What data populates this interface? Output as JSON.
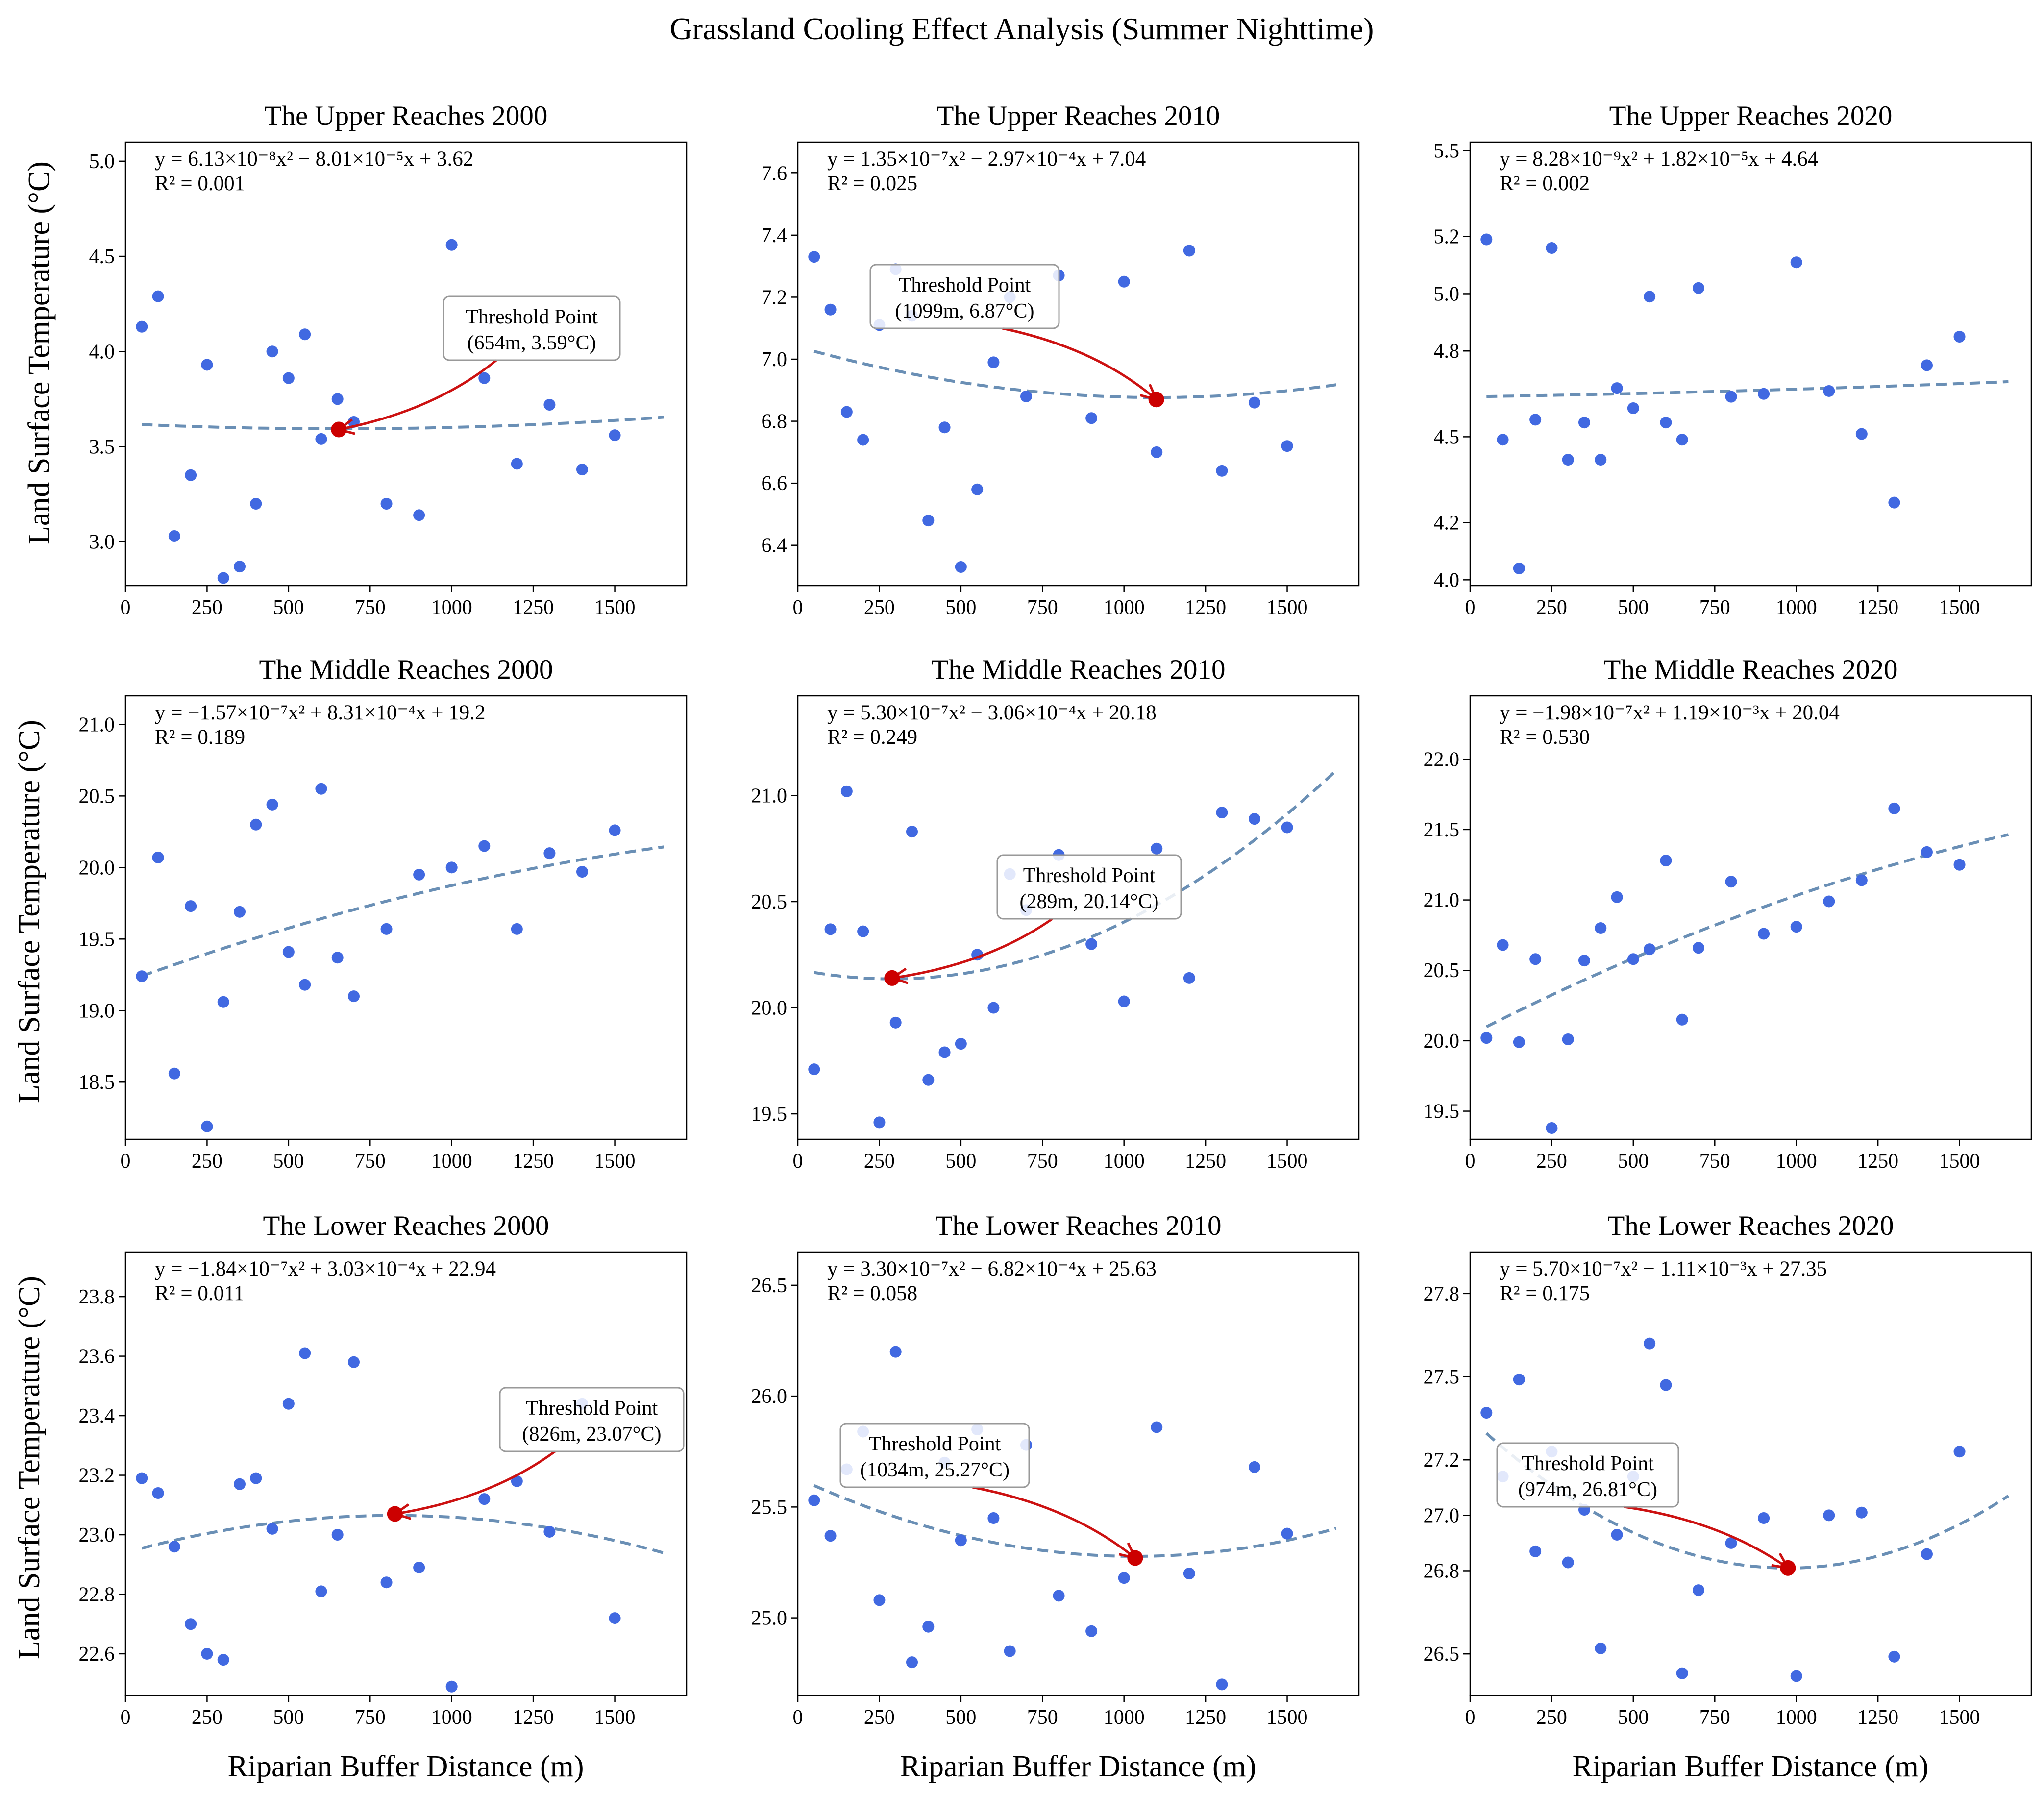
{
  "figure": {
    "title": "Grassland Cooling Effect Analysis (Summer Nighttime)",
    "xlabel": "Riparian Buffer Distance (m)",
    "ylabel": "Land Surface Temperature (°C)",
    "annotation_label": "Threshold Point"
  },
  "colors": {
    "points": "#4169e1",
    "fit": "#6a8fb5",
    "threshold": "#cc0000",
    "arrow": "#cc1111",
    "box_edge": "#999999"
  },
  "chart_data": [
    {
      "type": "scatter",
      "title": "The Upper Reaches 2000",
      "equation": "y = 6.13×10⁻⁸x² − 8.01×10⁻⁵x + 3.62",
      "r2": "R² = 0.001",
      "xlim": [
        0,
        1720
      ],
      "ylim": [
        2.77,
        5.1
      ],
      "xticks": [
        0,
        250,
        500,
        750,
        1000,
        1250,
        1500
      ],
      "xtick_labels": [
        "0",
        "250",
        "500",
        "750",
        "1000",
        "1250",
        "1500"
      ],
      "yticks": [
        3.0,
        3.5,
        4.0,
        4.5,
        5.0
      ],
      "ytick_labels": [
        "3.0",
        "3.5",
        "4.0",
        "4.5",
        "5.0"
      ],
      "points": [
        [
          50,
          4.13
        ],
        [
          100,
          4.29
        ],
        [
          150,
          3.03
        ],
        [
          200,
          3.35
        ],
        [
          250,
          3.93
        ],
        [
          300,
          2.81
        ],
        [
          350,
          2.87
        ],
        [
          400,
          3.2
        ],
        [
          450,
          4.0
        ],
        [
          500,
          3.86
        ],
        [
          550,
          4.09
        ],
        [
          600,
          3.54
        ],
        [
          650,
          3.75
        ],
        [
          700,
          3.63
        ],
        [
          800,
          3.2
        ],
        [
          900,
          3.14
        ],
        [
          1000,
          4.56
        ],
        [
          1100,
          3.86
        ],
        [
          1200,
          3.41
        ],
        [
          1300,
          3.72
        ],
        [
          1400,
          3.38
        ],
        [
          1500,
          3.56
        ]
      ],
      "fit": {
        "a": 6.13e-08,
        "b": -8.01e-05,
        "c": 3.62,
        "x_range": [
          50,
          1650
        ]
      },
      "threshold": {
        "x": 654,
        "y": 3.59,
        "label": "(654m, 3.59°C)"
      }
    },
    {
      "type": "scatter",
      "title": "The Upper Reaches 2010",
      "equation": "y = 1.35×10⁻⁷x² − 2.97×10⁻⁴x + 7.04",
      "r2": "R² = 0.025",
      "xlim": [
        0,
        1720
      ],
      "ylim": [
        6.27,
        7.7
      ],
      "xticks": [
        0,
        250,
        500,
        750,
        1000,
        1250,
        1500
      ],
      "xtick_labels": [
        "0",
        "250",
        "500",
        "750",
        "1000",
        "1250",
        "1500"
      ],
      "yticks": [
        6.4,
        6.6,
        6.8,
        7.0,
        7.2,
        7.4,
        7.6
      ],
      "ytick_labels": [
        "6.4",
        "6.6",
        "6.8",
        "7.0",
        "7.2",
        "7.4",
        "7.6"
      ],
      "points": [
        [
          50,
          7.33
        ],
        [
          100,
          7.16
        ],
        [
          150,
          6.83
        ],
        [
          200,
          6.74
        ],
        [
          250,
          7.11
        ],
        [
          300,
          7.29
        ],
        [
          350,
          7.14
        ],
        [
          400,
          6.48
        ],
        [
          450,
          6.78
        ],
        [
          500,
          6.33
        ],
        [
          550,
          6.58
        ],
        [
          600,
          6.99
        ],
        [
          650,
          7.2
        ],
        [
          700,
          6.88
        ],
        [
          800,
          7.27
        ],
        [
          900,
          6.81
        ],
        [
          1000,
          7.25
        ],
        [
          1100,
          6.7
        ],
        [
          1200,
          7.35
        ],
        [
          1300,
          6.64
        ],
        [
          1400,
          6.86
        ],
        [
          1500,
          6.72
        ]
      ],
      "fit": {
        "a": 1.35e-07,
        "b": -0.000297,
        "c": 7.04,
        "x_range": [
          50,
          1650
        ]
      },
      "threshold": {
        "x": 1099,
        "y": 6.87,
        "label": "(1099m, 6.87°C)"
      }
    },
    {
      "type": "scatter",
      "title": "The Upper Reaches 2020",
      "equation": "y = 8.28×10⁻⁹x² + 1.82×10⁻⁵x + 4.64",
      "r2": "R² = 0.002",
      "xlim": [
        0,
        1720
      ],
      "ylim": [
        3.98,
        5.53
      ],
      "xticks": [
        0,
        250,
        500,
        750,
        1000,
        1250,
        1500
      ],
      "xtick_labels": [
        "0",
        "250",
        "500",
        "750",
        "1000",
        "1250",
        "1500"
      ],
      "yticks": [
        4.0,
        4.2,
        4.5,
        4.8,
        5.0,
        5.2,
        5.5
      ],
      "ytick_labels": [
        "4.0",
        "4.2",
        "4.5",
        "4.8",
        "5.0",
        "5.2",
        "5.5"
      ],
      "points": [
        [
          50,
          5.19
        ],
        [
          100,
          4.49
        ],
        [
          150,
          4.04
        ],
        [
          200,
          4.56
        ],
        [
          250,
          5.16
        ],
        [
          300,
          4.42
        ],
        [
          350,
          4.55
        ],
        [
          400,
          4.42
        ],
        [
          450,
          4.67
        ],
        [
          500,
          4.6
        ],
        [
          550,
          4.99
        ],
        [
          600,
          4.55
        ],
        [
          650,
          4.49
        ],
        [
          700,
          5.02
        ],
        [
          800,
          4.64
        ],
        [
          900,
          4.65
        ],
        [
          1000,
          5.11
        ],
        [
          1100,
          4.66
        ],
        [
          1200,
          4.51
        ],
        [
          1300,
          4.27
        ],
        [
          1400,
          4.75
        ],
        [
          1500,
          4.85
        ]
      ],
      "fit": {
        "a": 8.28e-09,
        "b": 1.82e-05,
        "c": 4.64,
        "x_range": [
          50,
          1650
        ]
      }
    },
    {
      "type": "scatter",
      "title": "The Middle Reaches 2000",
      "equation": "y = −1.57×10⁻⁷x² + 8.31×10⁻⁴x + 19.2",
      "r2": "R² = 0.189",
      "xlim": [
        0,
        1720
      ],
      "ylim": [
        18.1,
        21.2
      ],
      "xticks": [
        0,
        250,
        500,
        750,
        1000,
        1250,
        1500
      ],
      "xtick_labels": [
        "0",
        "250",
        "500",
        "750",
        "1000",
        "1250",
        "1500"
      ],
      "yticks": [
        18.5,
        19.0,
        19.5,
        20.0,
        20.5,
        21.0
      ],
      "ytick_labels": [
        "18.5",
        "19.0",
        "19.5",
        "20.0",
        "20.5",
        "21.0"
      ],
      "points": [
        [
          50,
          19.24
        ],
        [
          100,
          20.07
        ],
        [
          150,
          18.56
        ],
        [
          200,
          19.73
        ],
        [
          250,
          18.19
        ],
        [
          300,
          19.06
        ],
        [
          350,
          19.69
        ],
        [
          400,
          20.3
        ],
        [
          450,
          20.44
        ],
        [
          500,
          19.41
        ],
        [
          550,
          19.18
        ],
        [
          600,
          20.55
        ],
        [
          650,
          19.37
        ],
        [
          700,
          19.1
        ],
        [
          800,
          19.57
        ],
        [
          900,
          19.95
        ],
        [
          1000,
          20.0
        ],
        [
          1100,
          20.15
        ],
        [
          1200,
          19.57
        ],
        [
          1300,
          20.1
        ],
        [
          1400,
          19.97
        ],
        [
          1500,
          20.26
        ]
      ],
      "fit": {
        "a": -1.57e-07,
        "b": 0.000831,
        "c": 19.2,
        "x_range": [
          50,
          1650
        ]
      }
    },
    {
      "type": "scatter",
      "title": "The Middle Reaches 2010",
      "equation": "y = 5.30×10⁻⁷x² − 3.06×10⁻⁴x + 20.18",
      "r2": "R² = 0.249",
      "xlim": [
        0,
        1720
      ],
      "ylim": [
        19.38,
        21.47
      ],
      "xticks": [
        0,
        250,
        500,
        750,
        1000,
        1250,
        1500
      ],
      "xtick_labels": [
        "0",
        "250",
        "500",
        "750",
        "1000",
        "1250",
        "1500"
      ],
      "yticks": [
        19.5,
        20.0,
        20.5,
        21.0
      ],
      "ytick_labels": [
        "19.5",
        "20.0",
        "20.5",
        "21.0"
      ],
      "points": [
        [
          50,
          19.71
        ],
        [
          100,
          20.37
        ],
        [
          150,
          21.02
        ],
        [
          200,
          20.36
        ],
        [
          250,
          19.46
        ],
        [
          300,
          19.93
        ],
        [
          350,
          20.83
        ],
        [
          400,
          19.66
        ],
        [
          450,
          19.79
        ],
        [
          500,
          19.83
        ],
        [
          550,
          20.25
        ],
        [
          600,
          20.0
        ],
        [
          650,
          20.63
        ],
        [
          700,
          20.46
        ],
        [
          800,
          20.72
        ],
        [
          900,
          20.3
        ],
        [
          1000,
          20.03
        ],
        [
          1100,
          20.75
        ],
        [
          1200,
          20.14
        ],
        [
          1300,
          20.92
        ],
        [
          1400,
          20.89
        ],
        [
          1500,
          20.85
        ]
      ],
      "fit": {
        "a": 5.3e-07,
        "b": -0.000306,
        "c": 20.18,
        "x_range": [
          50,
          1650
        ]
      },
      "threshold": {
        "x": 289,
        "y": 20.14,
        "label": "(289m, 20.14°C)"
      }
    },
    {
      "type": "scatter",
      "title": "The Middle Reaches 2020",
      "equation": "y = −1.98×10⁻⁷x² + 1.19×10⁻³x + 20.04",
      "r2": "R² = 0.530",
      "xlim": [
        0,
        1720
      ],
      "ylim": [
        19.3,
        22.45
      ],
      "xticks": [
        0,
        250,
        500,
        750,
        1000,
        1250,
        1500
      ],
      "xtick_labels": [
        "0",
        "250",
        "500",
        "750",
        "1000",
        "1250",
        "1500"
      ],
      "yticks": [
        19.5,
        20.0,
        20.5,
        21.0,
        21.5,
        22.0
      ],
      "ytick_labels": [
        "19.5",
        "20.0",
        "20.5",
        "21.0",
        "21.5",
        "22.0"
      ],
      "points": [
        [
          50,
          20.02
        ],
        [
          100,
          20.68
        ],
        [
          150,
          19.99
        ],
        [
          200,
          20.58
        ],
        [
          250,
          19.38
        ],
        [
          300,
          20.01
        ],
        [
          350,
          20.57
        ],
        [
          400,
          20.8
        ],
        [
          450,
          21.02
        ],
        [
          500,
          20.58
        ],
        [
          550,
          20.65
        ],
        [
          600,
          21.28
        ],
        [
          650,
          20.15
        ],
        [
          700,
          20.66
        ],
        [
          800,
          21.13
        ],
        [
          900,
          20.76
        ],
        [
          1000,
          20.81
        ],
        [
          1100,
          20.99
        ],
        [
          1200,
          21.14
        ],
        [
          1300,
          21.65
        ],
        [
          1400,
          21.34
        ],
        [
          1500,
          21.25
        ]
      ],
      "fit": {
        "a": -1.98e-07,
        "b": 0.00119,
        "c": 20.04,
        "x_range": [
          50,
          1650
        ]
      }
    },
    {
      "type": "scatter",
      "title": "The Lower Reaches 2000",
      "equation": "y = −1.84×10⁻⁷x² + 3.03×10⁻⁴x + 22.94",
      "r2": "R² = 0.011",
      "xlim": [
        0,
        1720
      ],
      "ylim": [
        22.46,
        23.95
      ],
      "xticks": [
        0,
        250,
        500,
        750,
        1000,
        1250,
        1500
      ],
      "xtick_labels": [
        "0",
        "250",
        "500",
        "750",
        "1000",
        "1250",
        "1500"
      ],
      "yticks": [
        22.6,
        22.8,
        23.0,
        23.2,
        23.4,
        23.6,
        23.8
      ],
      "ytick_labels": [
        "22.6",
        "22.8",
        "23.0",
        "23.2",
        "23.4",
        "23.6",
        "23.8"
      ],
      "points": [
        [
          50,
          23.19
        ],
        [
          100,
          23.14
        ],
        [
          150,
          22.96
        ],
        [
          200,
          22.7
        ],
        [
          250,
          22.6
        ],
        [
          300,
          22.58
        ],
        [
          350,
          23.17
        ],
        [
          400,
          23.19
        ],
        [
          450,
          23.02
        ],
        [
          500,
          23.44
        ],
        [
          550,
          23.61
        ],
        [
          600,
          22.81
        ],
        [
          650,
          23.0
        ],
        [
          700,
          23.58
        ],
        [
          800,
          22.84
        ],
        [
          900,
          22.89
        ],
        [
          1000,
          22.49
        ],
        [
          1100,
          23.12
        ],
        [
          1200,
          23.18
        ],
        [
          1300,
          23.01
        ],
        [
          1400,
          23.44
        ],
        [
          1500,
          22.72
        ]
      ],
      "fit": {
        "a": -1.84e-07,
        "b": 0.000303,
        "c": 22.94,
        "x_range": [
          50,
          1650
        ]
      },
      "threshold": {
        "x": 826,
        "y": 23.07,
        "label": "(826m, 23.07°C)"
      }
    },
    {
      "type": "scatter",
      "title": "The Lower Reaches 2010",
      "equation": "y = 3.30×10⁻⁷x² − 6.82×10⁻⁴x + 25.63",
      "r2": "R² = 0.058",
      "xlim": [
        0,
        1720
      ],
      "ylim": [
        24.65,
        26.65
      ],
      "xticks": [
        0,
        250,
        500,
        750,
        1000,
        1250,
        1500
      ],
      "xtick_labels": [
        "0",
        "250",
        "500",
        "750",
        "1000",
        "1250",
        "1500"
      ],
      "yticks": [
        25.0,
        25.5,
        26.0,
        26.5
      ],
      "ytick_labels": [
        "25.0",
        "25.5",
        "26.0",
        "26.5"
      ],
      "points": [
        [
          50,
          25.53
        ],
        [
          100,
          25.37
        ],
        [
          150,
          25.67
        ],
        [
          200,
          25.84
        ],
        [
          250,
          25.08
        ],
        [
          300,
          26.2
        ],
        [
          350,
          24.8
        ],
        [
          400,
          24.96
        ],
        [
          450,
          25.7
        ],
        [
          500,
          25.35
        ],
        [
          550,
          25.85
        ],
        [
          600,
          25.45
        ],
        [
          650,
          24.85
        ],
        [
          700,
          25.78
        ],
        [
          800,
          25.1
        ],
        [
          900,
          24.94
        ],
        [
          1000,
          25.18
        ],
        [
          1100,
          25.86
        ],
        [
          1200,
          25.2
        ],
        [
          1300,
          24.7
        ],
        [
          1400,
          25.68
        ],
        [
          1500,
          25.38
        ]
      ],
      "fit": {
        "a": 3.3e-07,
        "b": -0.000682,
        "c": 25.63,
        "x_range": [
          50,
          1650
        ]
      },
      "threshold": {
        "x": 1034,
        "y": 25.27,
        "label": "(1034m, 25.27°C)"
      }
    },
    {
      "type": "scatter",
      "title": "The Lower Reaches 2020",
      "equation": "y = 5.70×10⁻⁷x² − 1.11×10⁻³x + 27.35",
      "r2": "R² = 0.175",
      "xlim": [
        0,
        1720
      ],
      "ylim": [
        26.35,
        27.95
      ],
      "xticks": [
        0,
        250,
        500,
        750,
        1000,
        1250,
        1500
      ],
      "xtick_labels": [
        "0",
        "250",
        "500",
        "750",
        "1000",
        "1250",
        "1500"
      ],
      "yticks": [
        26.5,
        26.8,
        27.0,
        27.2,
        27.5,
        27.8
      ],
      "ytick_labels": [
        "26.5",
        "26.8",
        "27.0",
        "27.2",
        "27.5",
        "27.8"
      ],
      "points": [
        [
          50,
          27.37
        ],
        [
          100,
          27.14
        ],
        [
          150,
          27.49
        ],
        [
          200,
          26.87
        ],
        [
          250,
          27.23
        ],
        [
          300,
          26.83
        ],
        [
          350,
          27.02
        ],
        [
          400,
          26.52
        ],
        [
          450,
          26.93
        ],
        [
          500,
          27.14
        ],
        [
          550,
          27.62
        ],
        [
          600,
          27.47
        ],
        [
          650,
          26.43
        ],
        [
          700,
          26.73
        ],
        [
          800,
          26.9
        ],
        [
          900,
          26.99
        ],
        [
          1000,
          26.42
        ],
        [
          1100,
          27.0
        ],
        [
          1200,
          27.01
        ],
        [
          1300,
          26.49
        ],
        [
          1400,
          26.86
        ],
        [
          1500,
          27.23
        ]
      ],
      "fit": {
        "a": 5.7e-07,
        "b": -0.00111,
        "c": 27.35,
        "x_range": [
          50,
          1650
        ]
      },
      "threshold": {
        "x": 974,
        "y": 26.81,
        "label": "(974m, 26.81°C)"
      }
    }
  ]
}
